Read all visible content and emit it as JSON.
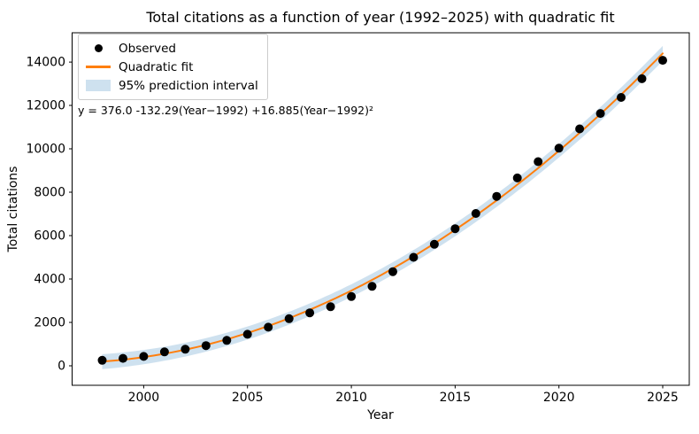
{
  "chart_data": {
    "type": "scatter",
    "title": "Total citations as a function of year (1992–2025) with quadratic fit",
    "xlabel": "Year",
    "ylabel": "Total citations",
    "annotation": "y = 376.0 -132.29(Year−1992) +16.885(Year−1992)²",
    "axes": {
      "xlim": [
        1996.55,
        2026.28
      ],
      "ylim": [
        -900,
        15350
      ],
      "xticks": [
        2000,
        2005,
        2010,
        2015,
        2020,
        2025
      ],
      "yticks": [
        0,
        2000,
        4000,
        6000,
        8000,
        10000,
        12000,
        14000
      ],
      "grid": false,
      "spine_color": "#000000"
    },
    "legend": {
      "position": "upper left",
      "items": [
        {
          "label": "Observed",
          "marker": "dot",
          "color": "#000000"
        },
        {
          "label": "Quadratic fit",
          "marker": "line",
          "color": "#ff7f0e"
        },
        {
          "label": "95% prediction interval",
          "marker": "patch",
          "color": "rgba(31,119,180,0.22)"
        }
      ]
    },
    "series": [
      {
        "name": "Observed",
        "type": "scatter",
        "color": "#000000",
        "marker_radius": 5,
        "x": [
          1998,
          1999,
          2000,
          2001,
          2002,
          2003,
          2004,
          2005,
          2006,
          2007,
          2008,
          2009,
          2010,
          2011,
          2012,
          2013,
          2014,
          2015,
          2016,
          2017,
          2018,
          2019,
          2020,
          2021,
          2022,
          2023,
          2024,
          2025
        ],
        "y": [
          250,
          340,
          430,
          640,
          760,
          930,
          1170,
          1450,
          1780,
          2170,
          2440,
          2720,
          3190,
          3660,
          4340,
          5000,
          5600,
          6320,
          7020,
          7810,
          8660,
          9410,
          10030,
          10920,
          11630,
          12370,
          13230,
          14080
        ]
      },
      {
        "name": "Quadratic fit",
        "type": "line",
        "color": "#ff7f0e",
        "width": 2,
        "fit": {
          "c0": 376.0,
          "c1": -132.29,
          "c2": 16.885,
          "origin": 1992,
          "x_start": 1998,
          "x_end": 2025
        }
      },
      {
        "name": "95% prediction interval",
        "type": "band",
        "color": "rgba(31,119,180,0.22)",
        "halfwidth_center": 290,
        "halfwidth_flare": 0.3
      }
    ]
  }
}
